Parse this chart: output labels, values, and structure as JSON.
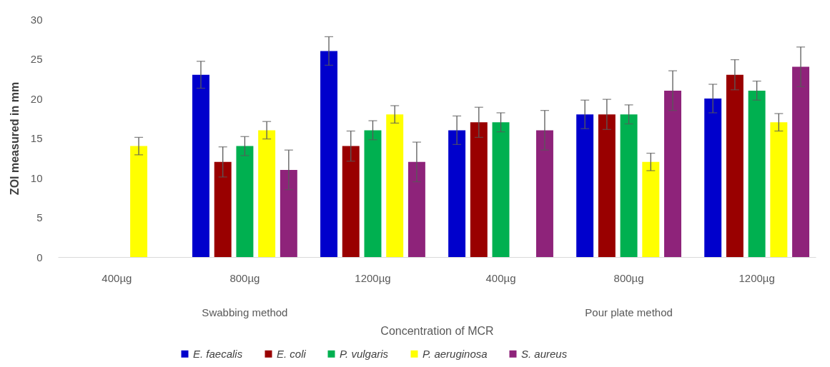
{
  "chart_data": {
    "type": "bar",
    "xlabel": "Concentration of MCR",
    "ylabel": "ZOI measured in mm",
    "categories": [
      "400µg",
      "800µg",
      "1200µg",
      "400µg",
      "800µg",
      "1200µg"
    ],
    "annotations": [
      "Swabbing method",
      "Pour plate method"
    ],
    "series": [
      {
        "name": "E. faecalis",
        "color": "#0000cc",
        "values": [
          null,
          23,
          26,
          16,
          18,
          20
        ],
        "errors": [
          null,
          1.7,
          1.8,
          1.8,
          1.8,
          1.8
        ]
      },
      {
        "name": "E. coli",
        "color": "#990000",
        "values": [
          null,
          12,
          14,
          17,
          18,
          23
        ],
        "errors": [
          null,
          1.9,
          1.9,
          1.9,
          1.9,
          1.9
        ]
      },
      {
        "name": "P. vulgaris",
        "color": "#00b050",
        "values": [
          null,
          14,
          16,
          17,
          18,
          21
        ],
        "errors": [
          null,
          1.2,
          1.2,
          1.2,
          1.2,
          1.2
        ]
      },
      {
        "name": "P. aeruginosa",
        "color": "#ffff00",
        "values": [
          14,
          16,
          18,
          null,
          12,
          17
        ],
        "errors": [
          1.1,
          1.1,
          1.1,
          null,
          1.1,
          1.1
        ]
      },
      {
        "name": "S. aureus",
        "color": "#8e237a",
        "values": [
          null,
          11,
          12,
          16,
          21,
          24
        ],
        "errors": [
          null,
          2.5,
          2.5,
          2.5,
          2.5,
          2.5
        ]
      }
    ],
    "ylim": [
      0,
      30
    ],
    "yticks": [
      0,
      5,
      10,
      15,
      20,
      25,
      30
    ],
    "grid": false,
    "legend": "bottom"
  }
}
